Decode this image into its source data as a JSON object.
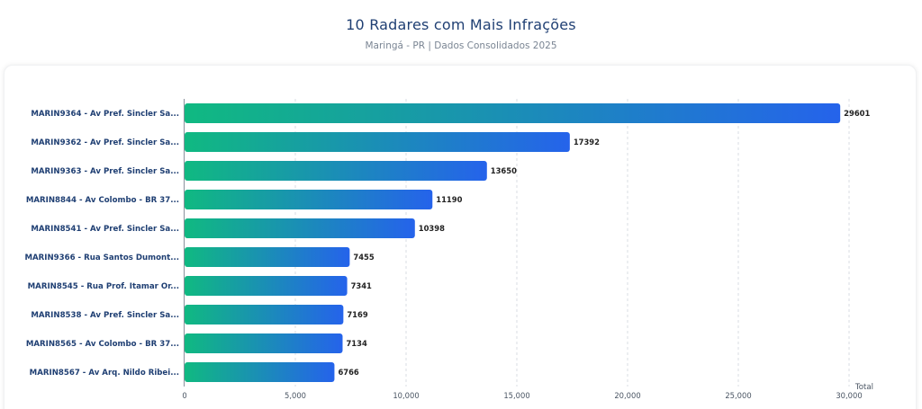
{
  "header": {
    "title": "10 Radares com Mais Infrações",
    "subtitle": "Maringá - PR | Dados Consolidados 2025"
  },
  "colors": {
    "bar_gradient_start": "#10b981",
    "bar_gradient_end": "#2563eb",
    "title": "#1f3f73",
    "category_label": "#1f3f73",
    "grid": "#d9dde3"
  },
  "chart_data": {
    "type": "bar",
    "orientation": "horizontal",
    "title": "10 Radares com Mais Infrações",
    "subtitle": "Maringá - PR | Dados Consolidados 2025",
    "xlabel": "Total",
    "ylabel": "",
    "xlim": [
      0,
      30000
    ],
    "x_ticks": [
      0,
      5000,
      10000,
      15000,
      20000,
      25000,
      30000
    ],
    "x_tick_labels": [
      "0",
      "5,000",
      "10,000",
      "15,000",
      "20,000",
      "25,000",
      "30,000"
    ],
    "grid": true,
    "legend": "none",
    "categories": [
      "MARIN9364 - Av Pref. Sincler Sa...",
      "MARIN9362 - Av Pref. Sincler Sa...",
      "MARIN9363 - Av Pref. Sincler Sa...",
      "MARIN8844 - Av Colombo - BR 37...",
      "MARIN8541 - Av Pref. Sincler Sa...",
      "MARIN9366 - Rua Santos Dumont...",
      "MARIN8545 - Rua Prof. Itamar Or...",
      "MARIN8538 - Av Pref. Sincler Sa...",
      "MARIN8565 - Av Colombo - BR 37...",
      "MARIN8567 - Av Arq. Nildo Ribei..."
    ],
    "values": [
      29601,
      17392,
      13650,
      11190,
      10398,
      7455,
      7341,
      7169,
      7134,
      6766
    ],
    "value_labels": [
      "29601",
      "17392",
      "13650",
      "11190",
      "10398",
      "7455",
      "7341",
      "7169",
      "7134",
      "6766"
    ]
  }
}
